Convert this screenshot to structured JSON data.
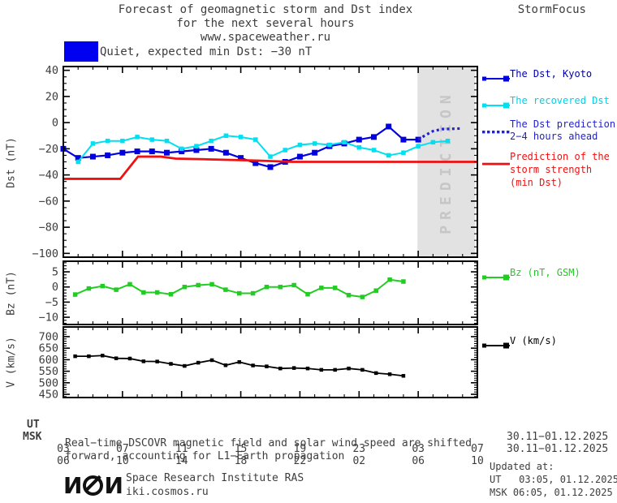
{
  "header": {
    "title_line1": "Forecast of geomagnetic storm and Dst index",
    "title_line2": "for the next several hours",
    "title_line3": "www.spaceweather.ru",
    "brand": "StormFocus"
  },
  "banner": {
    "label": "Quiet, expected min Dst: −30 nT"
  },
  "colors": {
    "text": "#3d3d3d",
    "axis": "#000000",
    "banner_box": "#0000f0",
    "dst_kyoto": "#0000e0",
    "dst_recovered": "#00e0f0",
    "dst_prediction": "#2222cc",
    "storm_strength": "#ee1111",
    "bz": "#22cc22",
    "v": "#000000",
    "band_bg": "#e2e2e2",
    "band_text": "#c6c6c6",
    "legend_kyoto_text": "#0000a8",
    "legend_recovered_text": "#00d0e8",
    "legend_prediction_text": "#2222cc",
    "legend_storm_text": "#ee1111",
    "legend_bz_text": "#22cc22",
    "legend_v_text": "#000000"
  },
  "prediction_band": {
    "label": "PREDICTION",
    "h_start": 23.95,
    "h_end": 27.85
  },
  "legend": {
    "kyoto": {
      "label": "The Dst, Kyoto"
    },
    "recovered": {
      "label": "The recovered Dst"
    },
    "prediction": {
      "label": "The Dst prediction",
      "label2": "2−4 hours ahead"
    },
    "storm": {
      "label": "Prediction of the",
      "label2": "storm strength",
      "label3": "(min Dst)"
    },
    "bz": {
      "label": "Bz (nT, GSM)"
    },
    "v": {
      "label": "V (km/s)"
    }
  },
  "xaxis": {
    "ut_label": "UT",
    "msk_label": "MSK",
    "ut_ticks": [
      "03",
      "07",
      "11",
      "15",
      "19",
      "23",
      "03",
      "07"
    ],
    "msk_ticks": [
      "06",
      "10",
      "14",
      "18",
      "22",
      "02",
      "06",
      "10"
    ],
    "ut_date": "30.11−01.12.2025",
    "msk_date": "30.11−01.12.2025"
  },
  "chart_data": [
    {
      "type": "line",
      "name": "dst",
      "ylabel": "Dst (nT)",
      "ylim": [
        -102.9,
        42.9
      ],
      "yticks": [
        40,
        20,
        0,
        -20,
        -40,
        -60,
        -80,
        -100
      ],
      "yminor": 5,
      "xlim_hours": [
        0,
        28
      ],
      "x_hours_ut": [
        "03",
        "07",
        "11",
        "15",
        "19",
        "23",
        "03",
        "07"
      ],
      "grid": false,
      "series": [
        {
          "name": "The Dst, Kyoto",
          "color_key": "dst_kyoto",
          "width": 2.2,
          "marker": 7,
          "h0": 0,
          "dh": 1,
          "values": [
            -20,
            -27,
            -26,
            -25,
            -23,
            -22,
            -22,
            -23,
            -22,
            -21,
            -20,
            -23,
            -27,
            -31,
            -34,
            -30,
            -26,
            -23,
            -18,
            -16,
            -13,
            -11,
            -3,
            -13,
            -13
          ]
        },
        {
          "name": "The recovered Dst",
          "color_key": "dst_recovered",
          "width": 2,
          "marker": 5.5,
          "h0": 1,
          "dh": 1,
          "values": [
            -30,
            -16,
            -14,
            -14,
            -11,
            -13,
            -14,
            -20,
            -18,
            -14,
            -10,
            -11,
            -13,
            -26,
            -21,
            -17,
            -16,
            -17,
            -15,
            -19,
            -21,
            -25,
            -23,
            -18,
            -15,
            -14
          ]
        },
        {
          "name": "The Dst prediction 2−4 hours ahead",
          "color_key": "dst_prediction",
          "width": 3.2,
          "dotted": true,
          "points": [
            [
              24,
              -13
            ],
            [
              24.5,
              -9.5
            ],
            [
              25,
              -6.5
            ],
            [
              25.6,
              -5
            ],
            [
              26.9,
              -4.5
            ]
          ]
        },
        {
          "name": "Prediction of the storm strength (min Dst)",
          "color_key": "storm_strength",
          "width": 2.8,
          "points": [
            [
              0,
              -43
            ],
            [
              3.85,
              -43
            ],
            [
              5.05,
              -26
            ],
            [
              6.6,
              -26
            ],
            [
              7.6,
              -27.5
            ],
            [
              9.5,
              -28
            ],
            [
              13,
              -29
            ],
            [
              15.5,
              -30
            ],
            [
              27.95,
              -30
            ]
          ]
        }
      ]
    },
    {
      "type": "line",
      "name": "bz",
      "ylabel": "Bz (nT)",
      "ylim": [
        -12.4,
        8.5
      ],
      "yticks": [
        5,
        0,
        -5,
        -10
      ],
      "yminor": 1,
      "grid": false,
      "series": [
        {
          "name": "Bz (nT, GSM)",
          "color_key": "bz",
          "width": 2,
          "marker": 5.5,
          "h0": 0.8,
          "dh": 0.925,
          "values": [
            -2.5,
            -0.5,
            0.3,
            -0.9,
            0.9,
            -1.8,
            -1.8,
            -2.4,
            0,
            0.6,
            0.9,
            -0.9,
            -2.1,
            -2.1,
            0,
            0,
            0.6,
            -2.4,
            -0.3,
            -0.3,
            -2.7,
            -3.3,
            -1.2,
            2.4,
            1.8
          ]
        }
      ]
    },
    {
      "type": "line",
      "name": "v",
      "ylabel": "V (km/s)",
      "ylim": [
        436,
        742
      ],
      "yticks": [
        700,
        650,
        600,
        550,
        500,
        450
      ],
      "yminor": 10,
      "grid": false,
      "series": [
        {
          "name": "V (km/s)",
          "color_key": "v",
          "width": 1.8,
          "marker": 4.5,
          "h0": 0.8,
          "dh": 0.925,
          "values": [
            615,
            615,
            618,
            606,
            605,
            593,
            592,
            582,
            573,
            587,
            598,
            576,
            590,
            575,
            571,
            562,
            564,
            562,
            556,
            556,
            562,
            556,
            542,
            537,
            530
          ]
        }
      ]
    }
  ],
  "footer": {
    "note_line1": "Real−time DSCOVR magnetic field and solar wind speed are shifted",
    "note_line2": "forward, accounting for L1−Earth propagation",
    "logo_left": "И",
    "logo_right": "И",
    "org_name": "Space Research Institute RAS",
    "org_site": "iki.cosmos.ru",
    "updated_label": "Updated at:",
    "updated_ut": "UT   03:05, 01.12.2025",
    "updated_msk": "MSK 06:05, 01.12.2025"
  }
}
